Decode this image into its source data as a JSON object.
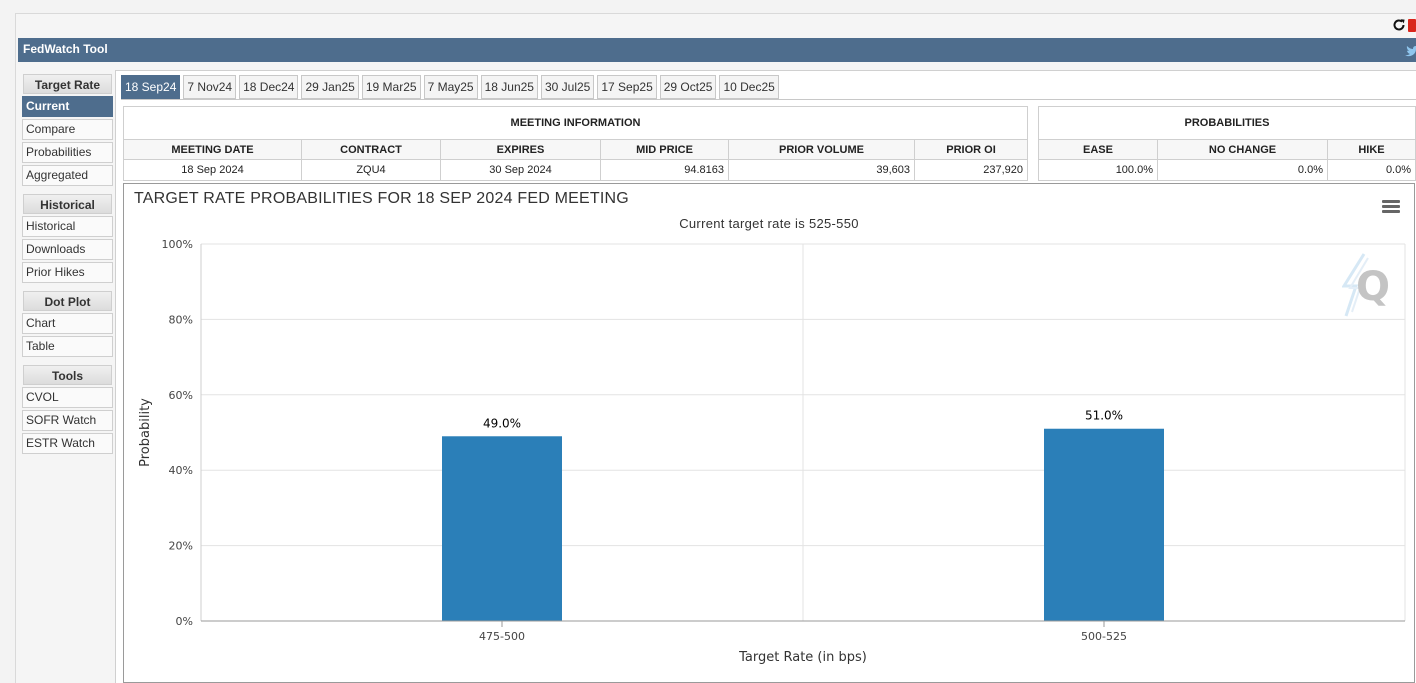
{
  "app": {
    "title": "FedWatch Tool"
  },
  "sidebar": {
    "sections": [
      {
        "heading": "Target Rate",
        "items": [
          "Current",
          "Compare",
          "Probabilities",
          "Aggregated"
        ]
      },
      {
        "heading": "Historical",
        "items": [
          "Historical",
          "Downloads",
          "Prior Hikes"
        ]
      },
      {
        "heading": "Dot Plot",
        "items": [
          "Chart",
          "Table"
        ]
      },
      {
        "heading": "Tools",
        "items": [
          "CVOL",
          "SOFR Watch",
          "ESTR Watch"
        ]
      }
    ],
    "active_item": "Current"
  },
  "tabs": [
    "18 Sep24",
    "7 Nov24",
    "18 Dec24",
    "29 Jan25",
    "19 Mar25",
    "7 May25",
    "18 Jun25",
    "30 Jul25",
    "17 Sep25",
    "29 Oct25",
    "10 Dec25"
  ],
  "active_tab": "18 Sep24",
  "meeting_info": {
    "caption": "MEETING INFORMATION",
    "headers": [
      "MEETING DATE",
      "CONTRACT",
      "EXPIRES",
      "MID PRICE",
      "PRIOR VOLUME",
      "PRIOR OI"
    ],
    "row": [
      "18 Sep 2024",
      "ZQU4",
      "30 Sep 2024",
      "94.8163",
      "39,603",
      "237,920"
    ]
  },
  "probabilities": {
    "caption": "PROBABILITIES",
    "headers": [
      "EASE",
      "NO CHANGE",
      "HIKE"
    ],
    "row": [
      "100.0%",
      "0.0%",
      "0.0%"
    ]
  },
  "chart": {
    "title": "TARGET RATE PROBABILITIES FOR 18 SEP 2024 FED MEETING",
    "subtitle": "Current target rate is 525-550"
  },
  "chart_data": {
    "type": "bar",
    "title": "TARGET RATE PROBABILITIES FOR 18 SEP 2024 FED MEETING",
    "subtitle": "Current target rate is 525-550",
    "categories": [
      "475-500",
      "500-525"
    ],
    "values": [
      49.0,
      51.0
    ],
    "data_labels": [
      "49.0%",
      "51.0%"
    ],
    "xlabel": "Target Rate (in bps)",
    "ylabel": "Probability",
    "ylim": [
      0,
      100
    ],
    "yticks": [
      "0%",
      "20%",
      "40%",
      "60%",
      "80%",
      "100%"
    ],
    "grid": true,
    "bar_color": "#2b7fb8"
  },
  "colors": {
    "header_bg": "#4e6d8d",
    "bar": "#2b7fb8"
  }
}
